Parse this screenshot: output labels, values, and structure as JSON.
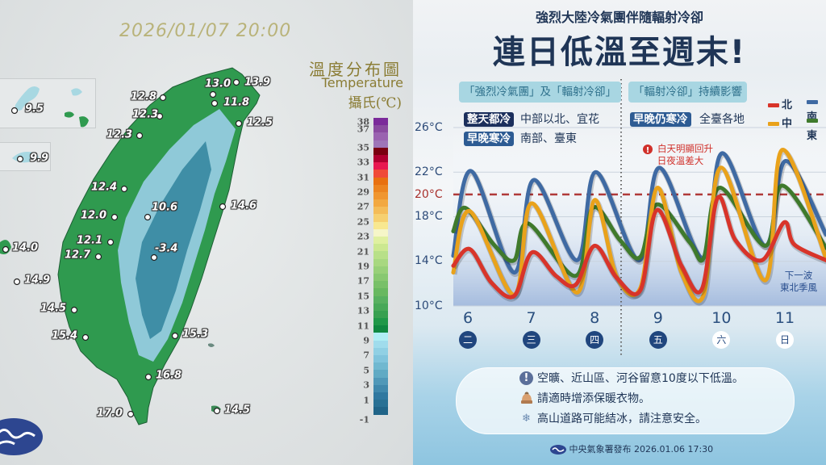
{
  "map": {
    "timestamp": "2026/01/07 20:00",
    "legend_title": "溫度分布圖",
    "legend_subtitle": "Temperature",
    "legend_unit": "攝氏(℃)",
    "colorbar_labels": [
      "38",
      "37",
      "35",
      "33",
      "31",
      "29",
      "27",
      "25",
      "23",
      "21",
      "19",
      "17",
      "15",
      "13",
      "11",
      "9",
      "7",
      "5",
      "3",
      "1",
      "-1"
    ],
    "colorbar_colors": [
      "#7b2a9a",
      "#8a4aa0",
      "#9a62b0",
      "#9e76b8",
      "#7a0010",
      "#b00030",
      "#e81850",
      "#f04a38",
      "#e87010",
      "#ec8420",
      "#f09630",
      "#f2a840",
      "#f4bc58",
      "#f6d070",
      "#f8e890",
      "#f6f6c8",
      "#e0f0a0",
      "#cce890",
      "#b8e088",
      "#a8d880",
      "#98d078",
      "#88c870",
      "#78c068",
      "#68b860",
      "#58b060",
      "#48a858",
      "#38a050",
      "#209848",
      "#108840",
      "#b0eef4",
      "#a0dcec",
      "#90d0e4",
      "#80c4dc",
      "#70b8d0",
      "#60aac4",
      "#5098b8",
      "#4088ac",
      "#3078a0",
      "#287094",
      "#206488"
    ],
    "stations": [
      "13.9",
      "13.0",
      "11.8",
      "12.8",
      "12.3",
      "12.3",
      "12.5",
      "12.4",
      "14.6",
      "10.6",
      "12.0",
      "12.1",
      "12.7",
      "-3.4",
      "14.0",
      "9.5",
      "9.9",
      "14.9",
      "14.5",
      "15.4",
      "15.3",
      "16.8",
      "17.0",
      "14.5"
    ],
    "land_color": "#2f9a4f",
    "mountain_color": "#8fc9d8"
  },
  "poster": {
    "subtitle": "強烈大陸冷氣團伴隨輻射冷卻",
    "title": "連日低溫至週末!",
    "phase1": "「強烈冷氣團」及「輻射冷卻」",
    "phase2": "「輻射冷卻」持續影響",
    "rows": [
      {
        "tag": "整天都冷",
        "text": "中部以北、宜花",
        "color": "#1b2f5c"
      },
      {
        "tag": "早晚寒冷",
        "text": "南部、臺東",
        "color": "#2d5b93"
      },
      {
        "tag": "早晚仍寒冷",
        "text": "全臺各地",
        "color": "#2d5b93"
      }
    ],
    "annotation": [
      "白天明顯回升",
      "日夜溫差大"
    ],
    "next_wave": [
      "下一波",
      "東北季風"
    ],
    "notices": [
      {
        "icon": "exclamation-icon",
        "text": "空曠、近山區、河谷留意10度以下低溫。"
      },
      {
        "icon": "beanie-icon",
        "text": "請適時增添保暖衣物。"
      },
      {
        "icon": "snowflake-icon",
        "text": "高山道路可能結冰，請注意安全。"
      }
    ],
    "footer": "中央氣象署發布 2026.01.06 17:30"
  },
  "chart_data": {
    "type": "line",
    "ylim": [
      10,
      26
    ],
    "y_ticks": [
      "26°C",
      "22°C",
      "20°C",
      "18°C",
      "14°C",
      "10°C"
    ],
    "y_tick_values": [
      26,
      22,
      20,
      18,
      14,
      10
    ],
    "reference_line": {
      "value": 20,
      "label": "20°C",
      "color": "#b03a3a",
      "style": "dashed"
    },
    "categories": [
      "6",
      "7",
      "8",
      "9",
      "10",
      "11"
    ],
    "weekdays": [
      "二",
      "三",
      "四",
      "五",
      "六",
      "日"
    ],
    "grid": true,
    "legend_placement": "top-right",
    "series": [
      {
        "name": "南",
        "color": "#3f6aa3",
        "points": [
          [
            5.77,
            14.5
          ],
          [
            6.05,
            22.1
          ],
          [
            6.73,
            13.0
          ],
          [
            7.04,
            21.3
          ],
          [
            7.72,
            14.1
          ],
          [
            8.02,
            22.0
          ],
          [
            8.7,
            14.1
          ],
          [
            9.02,
            22.4
          ],
          [
            9.71,
            14.3
          ],
          [
            10.01,
            23.7
          ],
          [
            10.69,
            15.4
          ],
          [
            11.01,
            23.0
          ],
          [
            11.65,
            16.4
          ]
        ]
      },
      {
        "name": "東",
        "color": "#3f7a2c",
        "points": [
          [
            5.77,
            16.7
          ],
          [
            5.96,
            18.8
          ],
          [
            6.41,
            15.5
          ],
          [
            6.73,
            14.1
          ],
          [
            6.95,
            17.4
          ],
          [
            7.7,
            12.7
          ],
          [
            7.97,
            18.8
          ],
          [
            8.4,
            15.9
          ],
          [
            8.72,
            14.4
          ],
          [
            8.98,
            19.1
          ],
          [
            9.5,
            15.7
          ],
          [
            9.72,
            14.3
          ],
          [
            9.97,
            20.6
          ],
          [
            10.69,
            15.4
          ],
          [
            10.96,
            20.8
          ],
          [
            11.65,
            15.2
          ]
        ]
      },
      {
        "name": "中",
        "color": "#e9a21b",
        "points": [
          [
            5.77,
            13.0
          ],
          [
            6.03,
            18.5
          ],
          [
            6.73,
            11.0
          ],
          [
            7.01,
            19.2
          ],
          [
            7.72,
            11.2
          ],
          [
            8.0,
            19.5
          ],
          [
            8.35,
            12.6
          ],
          [
            8.72,
            11.6
          ],
          [
            8.99,
            20.6
          ],
          [
            9.37,
            13.0
          ],
          [
            9.72,
            11.0
          ],
          [
            9.99,
            22.4
          ],
          [
            10.69,
            12.3
          ],
          [
            10.96,
            24.0
          ],
          [
            11.65,
            14.3
          ]
        ]
      },
      {
        "name": "北",
        "color": "#d8342a",
        "points": [
          [
            5.77,
            13.6
          ],
          [
            6.03,
            15.1
          ],
          [
            6.37,
            12.1
          ],
          [
            6.73,
            10.9
          ],
          [
            7.01,
            14.8
          ],
          [
            7.39,
            12.7
          ],
          [
            7.7,
            11.9
          ],
          [
            8.0,
            15.4
          ],
          [
            8.35,
            12.5
          ],
          [
            8.72,
            11.4
          ],
          [
            8.98,
            18.6
          ],
          [
            9.37,
            13.6
          ],
          [
            9.69,
            11.5
          ],
          [
            9.94,
            19.7
          ],
          [
            10.22,
            15.9
          ],
          [
            10.64,
            14.1
          ],
          [
            10.99,
            17.5
          ],
          [
            11.15,
            15.5
          ],
          [
            11.65,
            14.1
          ]
        ]
      }
    ]
  }
}
